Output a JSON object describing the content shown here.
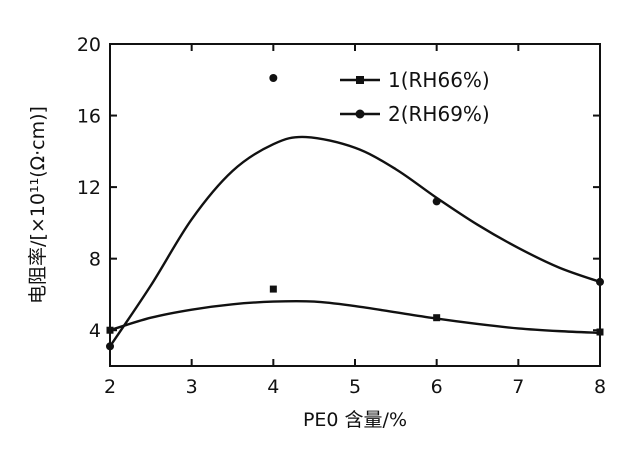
{
  "chart_data": {
    "type": "line",
    "xlabel": "PE0 含量/%",
    "ylabel": "电阻率/[×10¹¹(Ω·cm)]",
    "xlim": [
      2,
      8
    ],
    "ylim": [
      2,
      20
    ],
    "x_ticks": [
      "2",
      "3",
      "4",
      "5",
      "6",
      "7",
      "8"
    ],
    "y_ticks": [
      "4",
      "8",
      "12",
      "16",
      "20"
    ],
    "legend_position": "top-right",
    "grid": false,
    "series": [
      {
        "name": "1(RH66%)",
        "marker": "square",
        "color": "#111111",
        "points": [
          [
            2,
            4.0
          ],
          [
            4,
            6.3
          ],
          [
            6,
            4.7
          ],
          [
            8,
            3.9
          ]
        ],
        "fit": [
          [
            2,
            4.0
          ],
          [
            2.5,
            4.7
          ],
          [
            3,
            5.15
          ],
          [
            3.5,
            5.45
          ],
          [
            4,
            5.6
          ],
          [
            4.5,
            5.6
          ],
          [
            5,
            5.35
          ],
          [
            5.5,
            5.0
          ],
          [
            6,
            4.65
          ],
          [
            6.5,
            4.35
          ],
          [
            7,
            4.1
          ],
          [
            7.5,
            3.95
          ],
          [
            8,
            3.85
          ]
        ]
      },
      {
        "name": "2(RH69%)",
        "marker": "circle",
        "color": "#111111",
        "points": [
          [
            2,
            3.1
          ],
          [
            4,
            18.1
          ],
          [
            6,
            11.2
          ],
          [
            8,
            6.7
          ]
        ],
        "fit": [
          [
            2,
            3.1
          ],
          [
            2.5,
            6.5
          ],
          [
            3,
            10.2
          ],
          [
            3.5,
            12.9
          ],
          [
            4,
            14.4
          ],
          [
            4.4,
            14.8
          ],
          [
            5,
            14.2
          ],
          [
            5.5,
            13.0
          ],
          [
            6,
            11.4
          ],
          [
            6.5,
            9.9
          ],
          [
            7,
            8.6
          ],
          [
            7.5,
            7.5
          ],
          [
            8,
            6.7
          ]
        ]
      }
    ]
  }
}
